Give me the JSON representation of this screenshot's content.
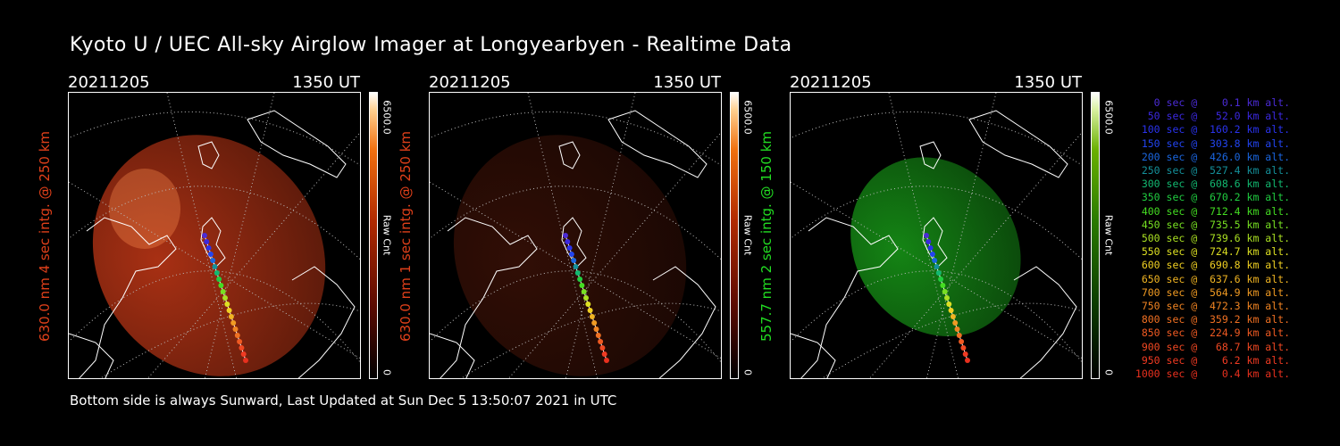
{
  "title": "Kyoto U / UEC All-sky Airglow Imager at Longyearbyen - Realtime Data",
  "footer": "Bottom side is always Sunward, Last Updated at Sun Dec  5 13:50:07 2021 in UTC",
  "colors": {
    "red": "#e0401a",
    "green": "#22dd22"
  },
  "panels": [
    {
      "date": "20211205",
      "time": "1350 UT",
      "ylabel": "630.0 nm 4 sec intg. @ 250 km",
      "cb_max": "6500.0",
      "cb_name": "Raw Cnt",
      "cb_min": "0",
      "scheme": "red",
      "brightness": 0.75
    },
    {
      "date": "20211205",
      "time": "1350 UT",
      "ylabel": "630.0 nm 1 sec intg. @ 250 km",
      "cb_max": "6500.0",
      "cb_name": "Raw Cnt",
      "cb_min": "0",
      "scheme": "red",
      "brightness": 0.22
    },
    {
      "date": "20211205",
      "time": "1350 UT",
      "ylabel": "557.7 nm 2 sec intg. @ 150 km",
      "cb_max": "6500.0",
      "cb_name": "Raw Cnt",
      "cb_min": "0",
      "scheme": "green",
      "brightness": 0.6
    }
  ],
  "legend": [
    {
      "text": "   0 sec @    0.1 km alt.",
      "color": "#4b2bd6"
    },
    {
      "text": "  50 sec @   52.0 km alt.",
      "color": "#3b28e0"
    },
    {
      "text": " 100 sec @  160.2 km alt.",
      "color": "#2a33ee"
    },
    {
      "text": " 150 sec @  303.8 km alt.",
      "color": "#2244f0"
    },
    {
      "text": " 200 sec @  426.0 km alt.",
      "color": "#1a66e0"
    },
    {
      "text": " 250 sec @  527.4 km alt.",
      "color": "#14909a"
    },
    {
      "text": " 300 sec @  608.6 km alt.",
      "color": "#12b870"
    },
    {
      "text": " 350 sec @  670.2 km alt.",
      "color": "#20cc40"
    },
    {
      "text": " 400 sec @  712.4 km alt.",
      "color": "#44dd22"
    },
    {
      "text": " 450 sec @  735.5 km alt.",
      "color": "#77e022"
    },
    {
      "text": " 500 sec @  739.6 km alt.",
      "color": "#aae022"
    },
    {
      "text": " 550 sec @  724.7 km alt.",
      "color": "#dde022"
    },
    {
      "text": " 600 sec @  690.8 km alt.",
      "color": "#f0d022"
    },
    {
      "text": " 650 sec @  637.6 km alt.",
      "color": "#f0b422"
    },
    {
      "text": " 700 sec @  564.9 km alt.",
      "color": "#f09a22"
    },
    {
      "text": " 750 sec @  472.3 km alt.",
      "color": "#f08422"
    },
    {
      "text": " 800 sec @  359.2 km alt.",
      "color": "#f07022"
    },
    {
      "text": " 850 sec @  224.9 km alt.",
      "color": "#f05a22"
    },
    {
      "text": " 900 sec @   68.7 km alt.",
      "color": "#f04822"
    },
    {
      "text": " 950 sec @    6.2 km alt.",
      "color": "#f03a22"
    },
    {
      "text": "1000 sec @    0.4 km alt.",
      "color": "#e8301e"
    }
  ]
}
